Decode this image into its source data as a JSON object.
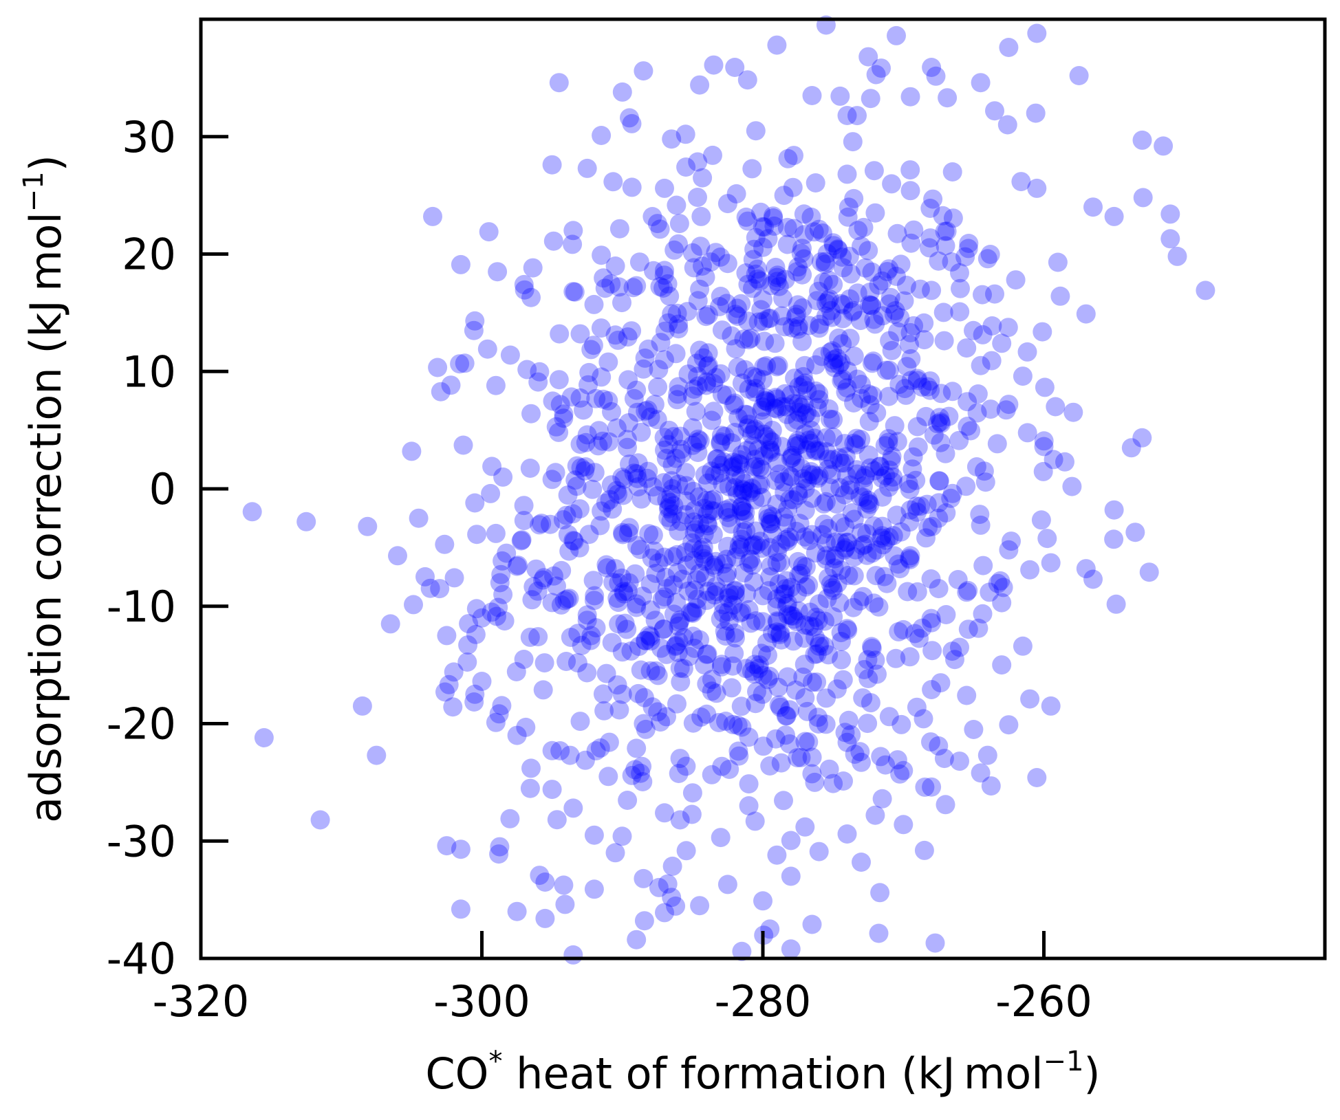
{
  "chart_data": {
    "type": "scatter",
    "xlabel": {
      "main": "CO",
      "sup1": "*",
      "rest": " heat of formation (kJ mol",
      "sup2": "−1",
      "end": ")"
    },
    "ylabel": {
      "main": "adsorption correction (kJ mol",
      "sup": "−1",
      "end": ")"
    },
    "xlim": [
      -320,
      -240
    ],
    "ylim": [
      -40,
      40
    ],
    "xticks": [
      -320,
      -300,
      -280,
      -260
    ],
    "xtick_labels": [
      "-320",
      "-300",
      "-280",
      "-260"
    ],
    "yticks": [
      -40,
      -30,
      -20,
      -10,
      0,
      10,
      20,
      30
    ],
    "ytick_labels": [
      "-40",
      "-30",
      "-20",
      "-10",
      "0",
      "10",
      "20",
      "30"
    ],
    "marker_color": "#0000ff",
    "marker_alpha": 0.3,
    "grid": false,
    "legend": false,
    "distribution": {
      "x_mean": -280,
      "x_std": 9,
      "y_mean": 0,
      "y_std": 14,
      "correlation": 0.15,
      "count": 1500
    },
    "points": [
      [
        -315.5,
        -21.2
      ],
      [
        -312.5,
        -2.8
      ],
      [
        -311.5,
        -28.2
      ],
      [
        -308.5,
        -18.5
      ],
      [
        -307.5,
        -22.7
      ],
      [
        -306.5,
        -11.5
      ],
      [
        -306.0,
        -5.7
      ],
      [
        -305.0,
        3.2
      ],
      [
        -304.5,
        -2.5
      ],
      [
        -303.5,
        23.2
      ],
      [
        -303.0,
        -8.5
      ],
      [
        -302.5,
        -12.5
      ],
      [
        -301.5,
        -35.8
      ],
      [
        -301.5,
        19.1
      ],
      [
        -300.5,
        14.3
      ],
      [
        -300.0,
        -16.4
      ],
      [
        -299.5,
        21.9
      ],
      [
        -299.0,
        8.8
      ],
      [
        -298.5,
        1.0
      ],
      [
        -298.0,
        -28.1
      ],
      [
        -297.0,
        17.4
      ],
      [
        -296.5,
        16.3
      ],
      [
        -296.0,
        9.1
      ],
      [
        -295.5,
        -33.5
      ],
      [
        -295.0,
        27.6
      ],
      [
        -294.5,
        34.6
      ],
      [
        -293.5,
        22.0
      ],
      [
        -293.0,
        13.2
      ],
      [
        -292.5,
        27.3
      ],
      [
        -292.0,
        -34.1
      ],
      [
        -291.5,
        30.1
      ],
      [
        -290.0,
        33.8
      ],
      [
        -289.5,
        31.6
      ],
      [
        -288.5,
        35.6
      ],
      [
        -287.0,
        25.6
      ],
      [
        -286.5,
        29.8
      ],
      [
        -285.5,
        30.2
      ],
      [
        -284.5,
        34.4
      ],
      [
        -283.5,
        36.1
      ],
      [
        -282.0,
        35.9
      ],
      [
        -280.5,
        30.5
      ],
      [
        -279.0,
        37.8
      ],
      [
        -276.5,
        33.5
      ],
      [
        -275.5,
        39.5
      ],
      [
        -274.0,
        31.8
      ],
      [
        -272.5,
        36.8
      ],
      [
        -270.5,
        38.6
      ],
      [
        -269.5,
        33.4
      ],
      [
        -268.0,
        35.9
      ],
      [
        -266.5,
        27.0
      ],
      [
        -264.5,
        34.6
      ],
      [
        -263.5,
        32.2
      ],
      [
        -262.5,
        37.6
      ],
      [
        -260.5,
        38.8
      ],
      [
        -257.5,
        35.2
      ],
      [
        -256.5,
        24.0
      ],
      [
        -255.0,
        23.2
      ],
      [
        -253.0,
        29.7
      ],
      [
        -251.5,
        29.2
      ],
      [
        -251.0,
        23.4
      ],
      [
        -251.0,
        21.3
      ],
      [
        -250.5,
        19.8
      ],
      [
        -248.5,
        16.9
      ],
      [
        -257.0,
        14.9
      ],
      [
        -259.0,
        19.3
      ],
      [
        -260.5,
        25.6
      ],
      [
        -260.0,
        3.6
      ],
      [
        -259.5,
        -6.3
      ],
      [
        -258.0,
        0.2
      ],
      [
        -257.0,
        -6.8
      ],
      [
        -256.5,
        -7.7
      ],
      [
        -255.0,
        -1.8
      ],
      [
        -253.5,
        -3.7
      ],
      [
        -252.5,
        -7.1
      ],
      [
        -259.5,
        -18.5
      ],
      [
        -260.5,
        -24.6
      ],
      [
        -261.5,
        -13.4
      ],
      [
        -263.0,
        -15.0
      ],
      [
        -264.5,
        -24.2
      ],
      [
        -265.5,
        -17.6
      ],
      [
        -267.0,
        -26.9
      ],
      [
        -268.5,
        -30.8
      ],
      [
        -271.5,
        -26.4
      ],
      [
        -273.0,
        -31.8
      ],
      [
        -276.5,
        -37.1
      ],
      [
        -278.0,
        -39.2
      ],
      [
        -279.5,
        -37.5
      ],
      [
        -281.5,
        -39.4
      ],
      [
        -287.0,
        -36.1
      ],
      [
        -289.0,
        -38.4
      ],
      [
        -293.5,
        -39.7
      ],
      [
        -295.5,
        -36.6
      ],
      [
        -297.5,
        -36.0
      ],
      [
        -301.5,
        -30.7
      ],
      [
        -302.5,
        -30.4
      ],
      [
        -290.0,
        -17.5
      ],
      [
        -288.5,
        -20.0
      ],
      [
        -284.0,
        -19.2
      ],
      [
        -281.5,
        -20.3
      ],
      [
        -279.5,
        -23.6
      ],
      [
        -277.0,
        -17.8
      ],
      [
        -274.0,
        -21.6
      ],
      [
        -271.0,
        -19.4
      ],
      [
        -268.0,
        -17.1
      ],
      [
        -266.0,
        -13.5
      ],
      [
        -292.0,
        -9.5
      ],
      [
        -290.5,
        -6.8
      ],
      [
        -288.0,
        -8.1
      ],
      [
        -286.0,
        -3.6
      ],
      [
        -284.5,
        -7.2
      ],
      [
        -282.5,
        -4.9
      ],
      [
        -281.0,
        -6.3
      ],
      [
        -279.5,
        -7.5
      ],
      [
        -277.0,
        -4.1
      ],
      [
        -275.5,
        -6.0
      ],
      [
        -273.5,
        -7.4
      ],
      [
        -271.5,
        -3.2
      ],
      [
        -269.5,
        -5.7
      ],
      [
        -267.5,
        -2.5
      ],
      [
        -265.5,
        -8.8
      ],
      [
        -293.0,
        3.8
      ],
      [
        -291.0,
        7.5
      ],
      [
        -289.5,
        2.1
      ],
      [
        -287.5,
        5.9
      ],
      [
        -285.5,
        1.4
      ],
      [
        -283.5,
        6.6
      ],
      [
        -281.5,
        2.9
      ],
      [
        -280.0,
        5.7
      ],
      [
        -278.5,
        0.6
      ],
      [
        -277.0,
        6.3
      ],
      [
        -275.0,
        2.5
      ],
      [
        -273.0,
        7.7
      ],
      [
        -271.0,
        1.6
      ],
      [
        -269.0,
        5.3
      ],
      [
        -267.0,
        3.0
      ],
      [
        -290.5,
        13.1
      ],
      [
        -288.5,
        10.2
      ],
      [
        -286.5,
        14.9
      ],
      [
        -284.5,
        11.8
      ],
      [
        -283.0,
        16.4
      ],
      [
        -281.0,
        12.7
      ],
      [
        -279.0,
        18.0
      ],
      [
        -277.5,
        13.6
      ],
      [
        -275.5,
        15.8
      ],
      [
        -273.5,
        11.3
      ],
      [
        -271.5,
        17.7
      ],
      [
        -269.5,
        13.3
      ],
      [
        -267.5,
        19.4
      ],
      [
        -265.5,
        12.0
      ],
      [
        -263.5,
        16.6
      ],
      [
        -287.5,
        22.6
      ],
      [
        -285.0,
        20.1
      ],
      [
        -282.5,
        24.3
      ],
      [
        -280.5,
        21.4
      ],
      [
        -278.5,
        25.0
      ],
      [
        -276.0,
        22.1
      ],
      [
        -274.0,
        26.8
      ],
      [
        -272.0,
        23.5
      ],
      [
        -269.5,
        25.4
      ],
      [
        -267.0,
        20.7
      ],
      [
        -295.0,
        -22.3
      ],
      [
        -293.0,
        -19.8
      ],
      [
        -291.0,
        -24.5
      ],
      [
        -289.0,
        -22.1
      ],
      [
        -287.0,
        -27.6
      ],
      [
        -285.0,
        -25.9
      ],
      [
        -283.0,
        -29.7
      ],
      [
        -281.0,
        -27.0
      ],
      [
        -279.0,
        -31.2
      ],
      [
        -277.0,
        -28.8
      ],
      [
        -275.0,
        -25.1
      ],
      [
        -273.0,
        -23.3
      ],
      [
        -270.0,
        -24.0
      ],
      [
        -267.5,
        -21.9
      ],
      [
        -265.0,
        -20.5
      ],
      [
        -296.0,
        -12.6
      ],
      [
        -294.0,
        -14.7
      ],
      [
        -292.5,
        -11.2
      ],
      [
        -290.0,
        -13.9
      ],
      [
        -288.0,
        -15.5
      ],
      [
        -286.0,
        -11.7
      ],
      [
        -284.0,
        -14.1
      ],
      [
        -282.0,
        -12.3
      ],
      [
        -280.0,
        -15.9
      ],
      [
        -278.0,
        -10.8
      ],
      [
        -276.0,
        -13.4
      ],
      [
        -274.0,
        -11.9
      ],
      [
        -272.0,
        -14.6
      ],
      [
        -270.0,
        -12.0
      ],
      [
        -268.0,
        -11.4
      ],
      [
        -297.0,
        -2.7
      ],
      [
        -295.0,
        0.8
      ],
      [
        -293.5,
        -4.4
      ],
      [
        -291.5,
        -1.9
      ],
      [
        -289.5,
        -3.3
      ],
      [
        -287.5,
        -0.6
      ],
      [
        -285.5,
        -2.2
      ],
      [
        -283.5,
        -0.9
      ],
      [
        -281.5,
        -1.5
      ],
      [
        -279.5,
        -2.8
      ],
      [
        -277.5,
        -0.3
      ],
      [
        -275.5,
        -1.1
      ],
      [
        -273.5,
        -2.6
      ],
      [
        -271.5,
        -0.7
      ],
      [
        -269.5,
        -1.8
      ],
      [
        -266.5,
        -0.4
      ],
      [
        -264.5,
        -3.1
      ],
      [
        -262.5,
        -5.2
      ],
      [
        -261.0,
        -6.9
      ],
      [
        -263.0,
        -9.7
      ],
      [
        -296.5,
        6.4
      ],
      [
        -294.5,
        9.3
      ],
      [
        -292.5,
        4.6
      ],
      [
        -291.0,
        10.8
      ],
      [
        -289.0,
        8.4
      ],
      [
        -287.0,
        11.0
      ],
      [
        -285.0,
        7.9
      ],
      [
        -283.0,
        9.8
      ],
      [
        -281.0,
        8.5
      ],
      [
        -279.0,
        10.4
      ],
      [
        -277.0,
        9.0
      ],
      [
        -275.0,
        10.7
      ],
      [
        -273.0,
        8.9
      ],
      [
        -271.0,
        10.1
      ],
      [
        -269.0,
        9.4
      ],
      [
        -266.5,
        8.3
      ],
      [
        -264.5,
        10.5
      ],
      [
        -262.5,
        7.2
      ],
      [
        -261.5,
        9.6
      ],
      [
        -263.0,
        12.4
      ],
      [
        -293.5,
        16.8
      ],
      [
        -291.5,
        19.9
      ],
      [
        -289.0,
        17.3
      ],
      [
        -287.0,
        18.6
      ],
      [
        -284.5,
        17.0
      ],
      [
        -282.5,
        19.2
      ],
      [
        -280.0,
        16.1
      ],
      [
        -277.5,
        18.9
      ],
      [
        -275.0,
        17.4
      ],
      [
        -272.5,
        20.3
      ],
      [
        -270.5,
        18.1
      ],
      [
        -268.0,
        16.9
      ],
      [
        -266.0,
        18.4
      ],
      [
        -264.0,
        19.6
      ],
      [
        -262.0,
        17.8
      ],
      [
        -300.5,
        -1.2
      ],
      [
        -299.0,
        -3.8
      ],
      [
        -297.5,
        -6.6
      ],
      [
        -298.5,
        -9.0
      ],
      [
        -300.0,
        -11.0
      ],
      [
        -301.0,
        -13.3
      ],
      [
        -302.0,
        -15.6
      ],
      [
        -300.5,
        -17.5
      ],
      [
        -299.0,
        -19.9
      ],
      [
        -297.5,
        -21.0
      ],
      [
        -296.5,
        -23.8
      ],
      [
        -295.0,
        -25.6
      ],
      [
        -293.5,
        -27.2
      ],
      [
        -292.0,
        -29.5
      ],
      [
        -290.5,
        -31.0
      ],
      [
        -288.5,
        -33.2
      ],
      [
        -286.5,
        -34.8
      ],
      [
        -284.5,
        -35.5
      ],
      [
        -282.5,
        -33.7
      ],
      [
        -280.0,
        -35.1
      ],
      [
        -278.0,
        -33.0
      ],
      [
        -276.0,
        -30.9
      ],
      [
        -274.0,
        -29.4
      ],
      [
        -272.0,
        -27.8
      ],
      [
        -270.0,
        -28.6
      ],
      [
        -268.0,
        -25.4
      ],
      [
        -266.0,
        -23.2
      ],
      [
        -264.0,
        -22.7
      ],
      [
        -262.5,
        -20.1
      ],
      [
        -261.0,
        -17.9
      ],
      [
        -286.0,
        0.4
      ],
      [
        -285.0,
        3.7
      ],
      [
        -284.0,
        -1.0
      ],
      [
        -283.0,
        2.0
      ],
      [
        -282.0,
        4.8
      ],
      [
        -281.0,
        -0.2
      ],
      [
        -280.5,
        1.9
      ],
      [
        -279.5,
        3.4
      ],
      [
        -279.0,
        -1.3
      ],
      [
        -278.0,
        2.6
      ],
      [
        -277.5,
        4.1
      ],
      [
        -276.5,
        -0.8
      ],
      [
        -276.0,
        1.1
      ],
      [
        -275.0,
        4.4
      ],
      [
        -274.5,
        0.1
      ],
      [
        -285.5,
        -5.4
      ],
      [
        -284.5,
        -3.0
      ],
      [
        -283.5,
        -6.5
      ],
      [
        -282.5,
        -2.0
      ],
      [
        -281.5,
        -4.3
      ],
      [
        -280.5,
        -3.6
      ],
      [
        -279.5,
        -5.0
      ],
      [
        -278.5,
        -2.4
      ],
      [
        -277.5,
        -6.2
      ],
      [
        -276.5,
        -3.9
      ],
      [
        -275.5,
        -4.6
      ],
      [
        -274.5,
        -2.9
      ],
      [
        -273.5,
        -5.8
      ],
      [
        -272.5,
        -1.2
      ],
      [
        -271.5,
        -4.0
      ],
      [
        -288.0,
        6.1
      ],
      [
        -287.0,
        3.3
      ],
      [
        -286.0,
        8.7
      ],
      [
        -285.0,
        5.2
      ],
      [
        -284.0,
        9.1
      ],
      [
        -283.0,
        4.0
      ],
      [
        -282.0,
        7.3
      ],
      [
        -281.0,
        5.5
      ],
      [
        -280.0,
        9.3
      ],
      [
        -279.0,
        6.8
      ],
      [
        -278.0,
        8.0
      ],
      [
        -277.0,
        4.7
      ],
      [
        -276.0,
        7.6
      ],
      [
        -275.0,
        5.9
      ],
      [
        -274.0,
        8.6
      ],
      [
        -289.0,
        -10.1
      ],
      [
        -288.0,
        -12.6
      ],
      [
        -287.0,
        -9.2
      ],
      [
        -286.0,
        -13.0
      ],
      [
        -285.0,
        -10.6
      ],
      [
        -284.0,
        -9.5
      ],
      [
        -283.0,
        -11.1
      ],
      [
        -282.0,
        -8.7
      ],
      [
        -281.0,
        -10.3
      ],
      [
        -280.0,
        -9.1
      ],
      [
        -279.0,
        -12.2
      ],
      [
        -278.0,
        -8.4
      ],
      [
        -277.0,
        -11.6
      ],
      [
        -276.0,
        -9.8
      ],
      [
        -275.0,
        -10.9
      ]
    ]
  }
}
